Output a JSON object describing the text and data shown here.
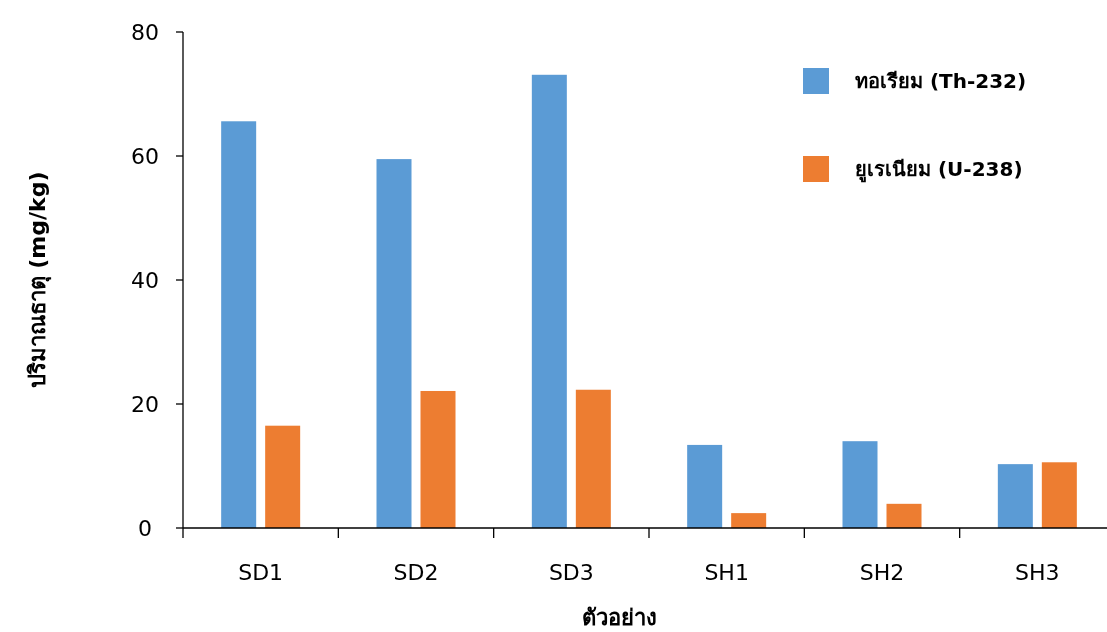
{
  "chart_data": {
    "type": "bar",
    "xlabel": "ตัวอย่าง",
    "ylabel": "ปริมาณธาตุ (mg/kg)",
    "categories": [
      "SD1",
      "SD2",
      "SD3",
      "SH1",
      "SH2",
      "SH3"
    ],
    "series": [
      {
        "name": "ทอเรียม (Th-232)",
        "color": "#5b9bd5",
        "values": [
          65.6,
          59.5,
          73.1,
          13.4,
          14.0,
          10.3
        ]
      },
      {
        "name": "ยูเรเนียม (U-238)",
        "color": "#ed7d31",
        "values": [
          16.5,
          22.1,
          22.3,
          2.4,
          3.9,
          10.6
        ]
      }
    ],
    "ylim": [
      0,
      80
    ],
    "yticks": [
      0,
      20,
      40,
      60,
      80
    ],
    "grid": false,
    "legend": "top right"
  }
}
